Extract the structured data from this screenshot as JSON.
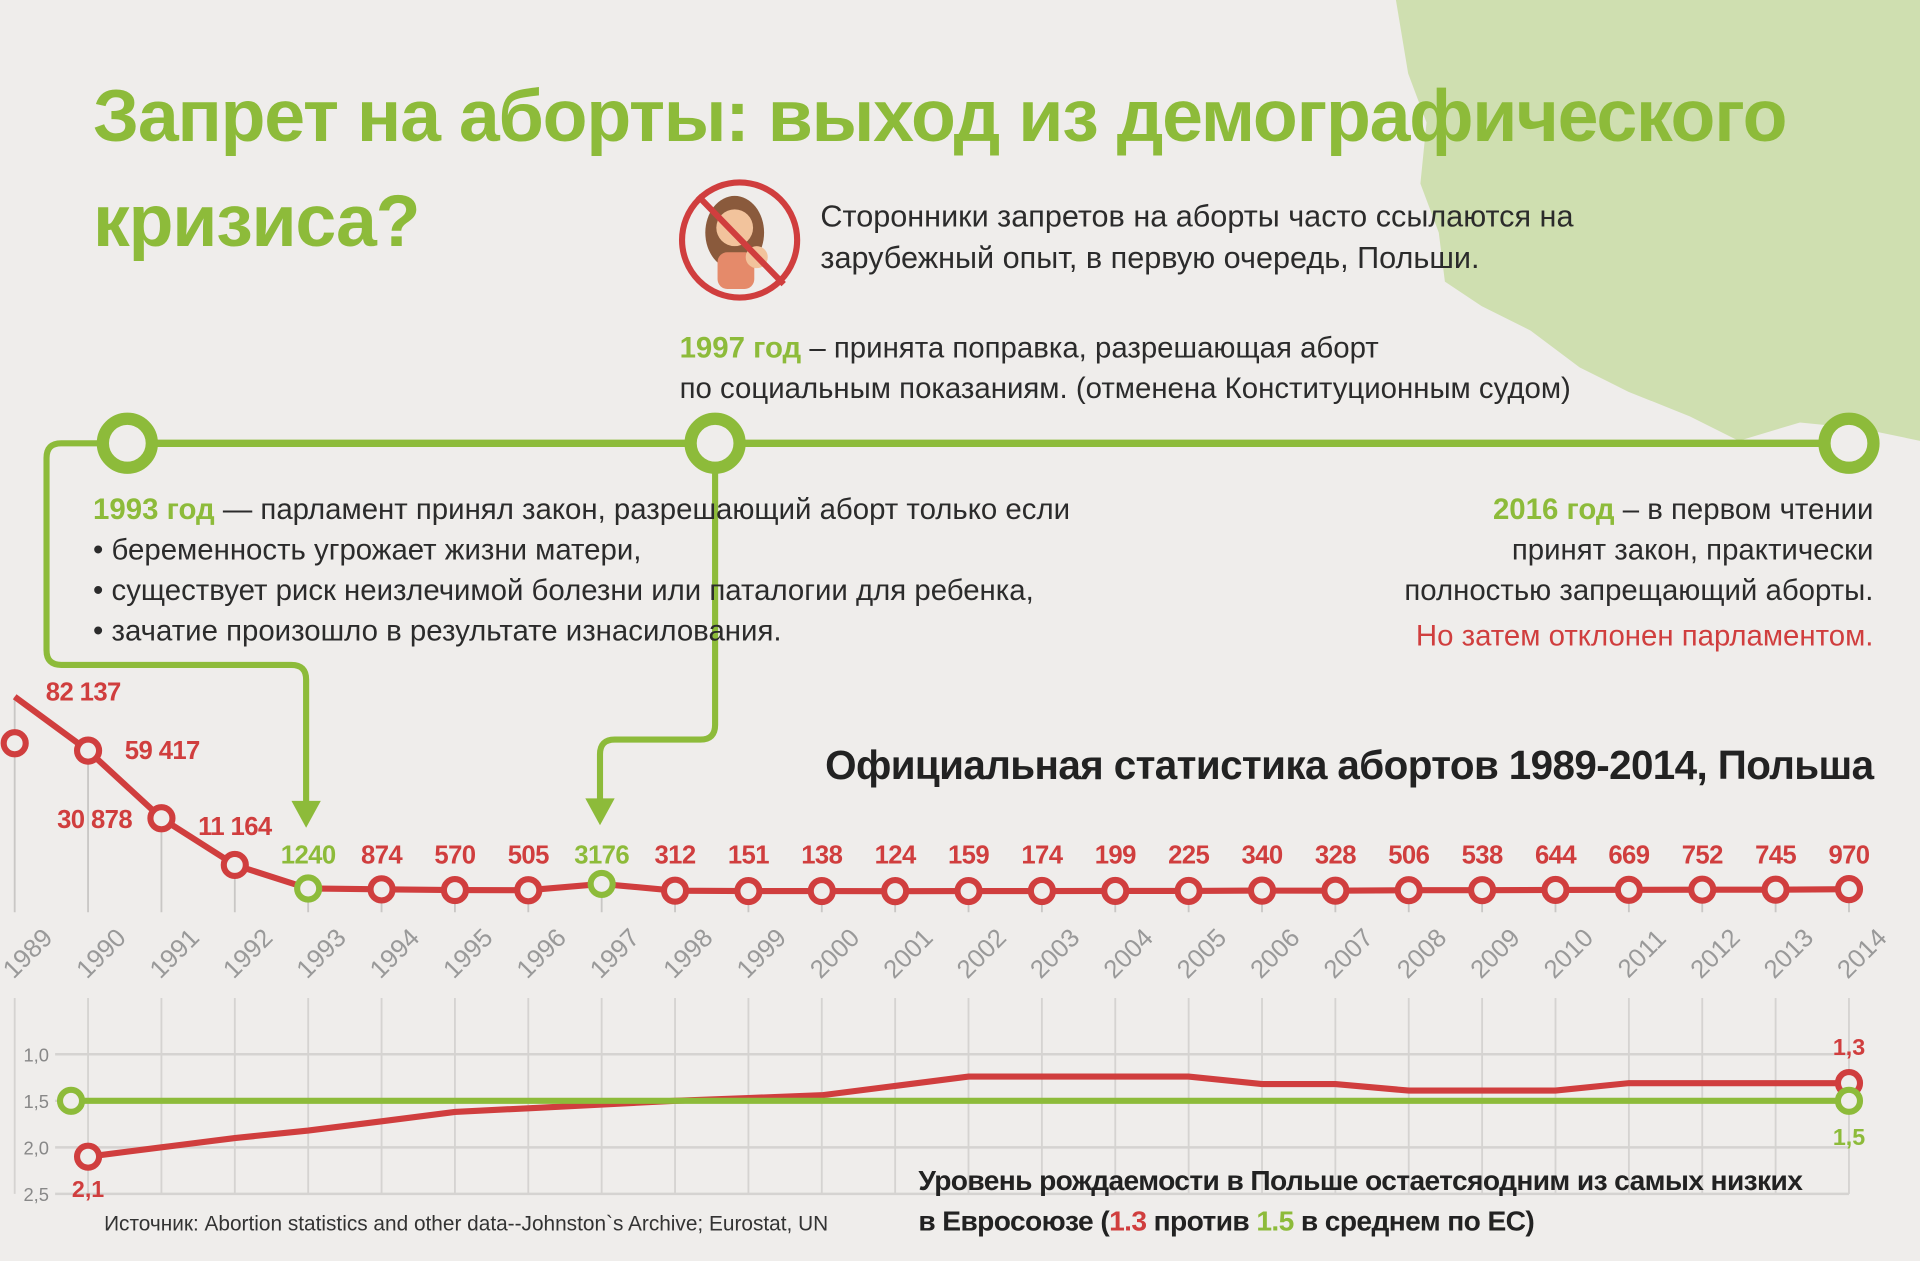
{
  "title": "Запрет на аборты: выход из демографического кризиса?",
  "intro": "Сторонники запретов на аборты часто ссылаются на зарубежный опыт, в первую очередь, Польши.",
  "events": {
    "e1997": {
      "year": "1997 год",
      "text1": " – принята поправка, разрешающая аборт",
      "text2": "по социальным показаниям. (отменена Конституционным судом)"
    },
    "e1993": {
      "year": "1993 год",
      "text": " — парламент принял закон, разрешающий аборт только если",
      "bullets": [
        "• беременность угрожает жизни матери,",
        "• существует риск неизлечимой болезни или паталогии для ребенка,",
        "• зачатие произошло в результате изнасилования."
      ]
    },
    "e2016": {
      "year": "2016 год",
      "text1": " – в первом чтении",
      "text2": "принят закон, практически",
      "text3": "полностью запрещающий аборты.",
      "text4": "Но затем отклонен парламентом."
    }
  },
  "colors": {
    "green": "#8dbb3a",
    "red": "#d03e3e",
    "map": "#cfdfb0"
  },
  "chart_data": [
    {
      "type": "line",
      "title": "Официальная статистика абортов 1989-2014, Польша",
      "x": [
        1989,
        1990,
        1991,
        1992,
        1993,
        1994,
        1995,
        1996,
        1997,
        1998,
        1999,
        2000,
        2001,
        2002,
        2003,
        2004,
        2005,
        2006,
        2007,
        2008,
        2009,
        2010,
        2011,
        2012,
        2013,
        2014
      ],
      "labels": [
        "82 137",
        "59 417",
        "30 878",
        "11 164",
        "1240",
        "874",
        "570",
        "505",
        "3176",
        "312",
        "151",
        "138",
        "124",
        "159",
        "174",
        "199",
        "225",
        "340",
        "328",
        "506",
        "538",
        "644",
        "669",
        "752",
        "745",
        "970"
      ],
      "values": [
        82137,
        59417,
        30878,
        11164,
        1240,
        874,
        570,
        505,
        3176,
        312,
        151,
        138,
        124,
        159,
        174,
        199,
        225,
        340,
        328,
        506,
        538,
        644,
        669,
        752,
        745,
        970
      ],
      "highlight_years": [
        1993,
        1997
      ]
    },
    {
      "type": "line",
      "title": "Уровень рождаемости в Польше остаетсяодним из самых низких в Евросоюзе (1.3 против 1.5 в среднем по ЕС)",
      "y_ticks": [
        "1,0",
        "1,5",
        "2,0",
        "2,5"
      ],
      "ylim": [
        1.0,
        2.5
      ],
      "y_inverted": true,
      "x": [
        1990,
        1991,
        1992,
        1993,
        1994,
        1995,
        1996,
        1997,
        1998,
        1999,
        2000,
        2001,
        2002,
        2003,
        2004,
        2005,
        2006,
        2007,
        2008,
        2009,
        2010,
        2011,
        2012,
        2013,
        2014
      ],
      "series": [
        {
          "name": "Польша",
          "color": "#d03e3e",
          "values": [
            2.1,
            2.0,
            1.9,
            1.82,
            1.72,
            1.62,
            1.58,
            1.54,
            1.5,
            1.47,
            1.44,
            1.34,
            1.24,
            1.24,
            1.24,
            1.24,
            1.32,
            1.32,
            1.39,
            1.39,
            1.39,
            1.31,
            1.31,
            1.31,
            1.31
          ],
          "start_label": "2,1",
          "end_label": "1,3"
        },
        {
          "name": "ЕС",
          "color": "#8dbb3a",
          "values": [
            1.5,
            1.5,
            1.5,
            1.5,
            1.5,
            1.5,
            1.5,
            1.5,
            1.5,
            1.5,
            1.5,
            1.5,
            1.5,
            1.5,
            1.5,
            1.5,
            1.5,
            1.5,
            1.5,
            1.5,
            1.5,
            1.5,
            1.5,
            1.5,
            1.5
          ],
          "end_label": "1,5"
        }
      ]
    }
  ],
  "bottom_note": {
    "line1": "Уровень рождаемости в Польше остаетсяодним из самых низких",
    "line2a": "в Евросоюзе (",
    "v1": "1.3",
    "mid": " против ",
    "v2": "1.5",
    "line2b": " в среднем по ЕС)"
  },
  "source": "Источник: Abortion statistics and other data--Johnston`s Archive;  Eurostat, UN"
}
